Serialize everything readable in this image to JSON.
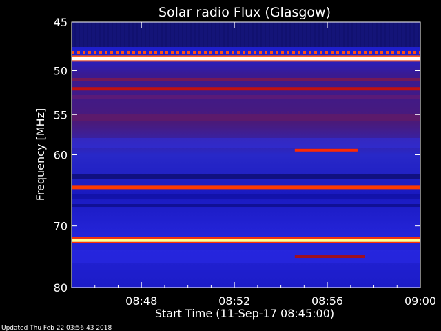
{
  "chart_data": {
    "type": "heatmap",
    "title": "Solar radio Flux (Glasgow)",
    "xlabel": "Start Time (11-Sep-17 08:45:00)",
    "ylabel": "Frequency [MHz]",
    "x_range": [
      "08:45:00",
      "09:00:00"
    ],
    "y_range_mhz": [
      45,
      80
    ],
    "y_scale": "log",
    "x_ticks": [
      "08:48",
      "08:52",
      "08:56",
      "09:00"
    ],
    "x_tick_minutes": [
      3,
      7,
      11,
      15
    ],
    "y_ticks": [
      45,
      50,
      55,
      60,
      70,
      80
    ],
    "features": [
      {
        "kind": "band",
        "freq_mhz": 48.7,
        "start_min": 0,
        "end_min": 15,
        "color": "#ffffff"
      },
      {
        "kind": "band",
        "freq_mhz": 64.4,
        "start_min": 0,
        "end_min": 15,
        "color": "#ff3a00"
      },
      {
        "kind": "band",
        "freq_mhz": 72.2,
        "start_min": 0,
        "end_min": 15,
        "color": "#ffff90"
      },
      {
        "kind": "band",
        "freq_mhz": 52.0,
        "start_min": 0,
        "end_min": 15,
        "color": "#c01010"
      },
      {
        "kind": "burst",
        "freq_mhz": 59.4,
        "start_min": 9.6,
        "end_min": 12.3,
        "color": "#ff2a00"
      },
      {
        "kind": "burst",
        "freq_mhz": 74.8,
        "start_min": 9.6,
        "end_min": 12.6,
        "color": "#a01020"
      }
    ],
    "colors": {
      "background": "#1a1ac8",
      "dark": "#0a0a50",
      "hot": "#ff2000"
    }
  },
  "footer": {
    "updated": "Updated Thu Feb 22 03:56:43 2018"
  }
}
